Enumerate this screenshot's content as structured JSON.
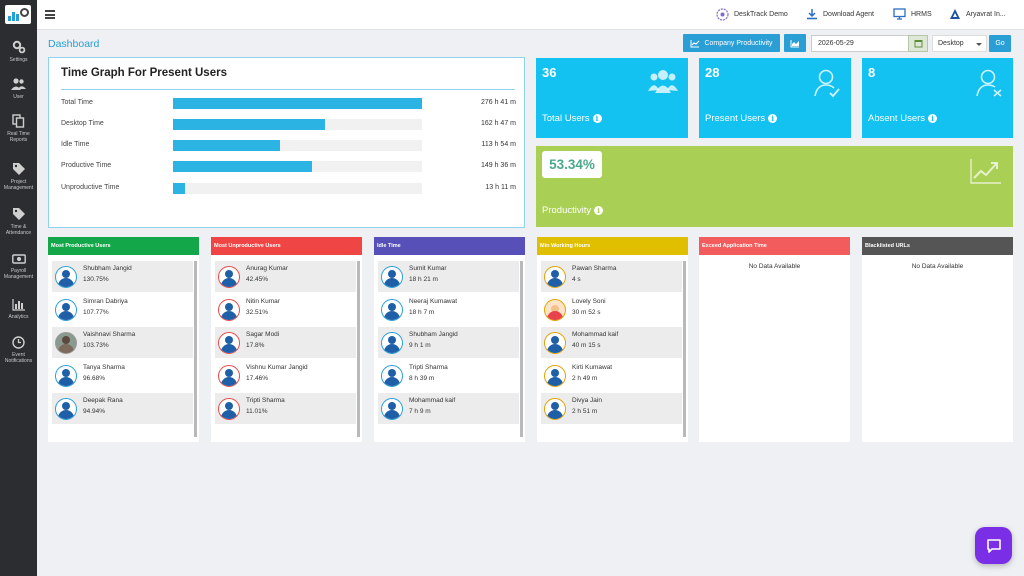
{
  "sidebar": {
    "items": [
      {
        "label": "Settings",
        "icon": "gears-icon"
      },
      {
        "label": "User",
        "icon": "users-icon"
      },
      {
        "label": "Real Time Reports",
        "icon": "copy-icon"
      },
      {
        "label": "Project Management",
        "icon": "tags-icon"
      },
      {
        "label": "Time & Attendance",
        "icon": "tag-icon"
      },
      {
        "label": "Payroll Management",
        "icon": "money-icon"
      },
      {
        "label": "Analytics",
        "icon": "bar-chart-icon"
      },
      {
        "label": "Event Notifications",
        "icon": "clock-icon"
      }
    ]
  },
  "topbar": {
    "desktrack": "DeskTrack Demo",
    "download": "Download Agent",
    "hrms": "HRMS",
    "user": "Aryavrat In..."
  },
  "page_title": "Dashboard",
  "controls": {
    "company_productivity": "Company Productivity",
    "date": "2026-05-29",
    "select_value": "Desktop",
    "go": "Go"
  },
  "time_graph": {
    "title": "Time Graph For Present Users",
    "rows": [
      {
        "label": "Total Time",
        "value": "276 h 41 m",
        "fraction": 1.0
      },
      {
        "label": "Desktop Time",
        "value": "162 h 47 m",
        "fraction": 0.61
      },
      {
        "label": "Idle Time",
        "value": "113 h 54 m",
        "fraction": 0.43
      },
      {
        "label": "Productive Time",
        "value": "149 h 36 m",
        "fraction": 0.56
      },
      {
        "label": "Unproductive Time",
        "value": "13 h 11 m",
        "fraction": 0.05
      }
    ]
  },
  "cards": {
    "total": {
      "value": "36",
      "label": "Total Users"
    },
    "present": {
      "value": "28",
      "label": "Present Users"
    },
    "absent": {
      "value": "8",
      "label": "Absent Users"
    },
    "productivity": {
      "value": "53.34%",
      "label": "Productivity"
    }
  },
  "panels": [
    {
      "title": "Most Productive Users",
      "color": "#14a74a",
      "avatar_border": "#2a9fd6",
      "rows": [
        {
          "name": "Shubham Jangid",
          "value": "130.75%"
        },
        {
          "name": "Simran Dabriya",
          "value": "107.77%"
        },
        {
          "name": "Vaishnavi Sharma",
          "value": "103.73%",
          "photo": true
        },
        {
          "name": "Tanya Sharma",
          "value": "96.68%"
        },
        {
          "name": "Deepak Rana",
          "value": "94.94%"
        }
      ]
    },
    {
      "title": "Most Unproductive Users",
      "color": "#f04545",
      "avatar_border": "#e84b4b",
      "rows": [
        {
          "name": "Anurag Kumar",
          "value": "42.45%"
        },
        {
          "name": "Nitin Kumar",
          "value": "32.51%"
        },
        {
          "name": "Sagar Modi",
          "value": "17.8%"
        },
        {
          "name": "Vishnu Kumar Jangid",
          "value": "17.46%"
        },
        {
          "name": "Tripti Sharma",
          "value": "11.01%"
        }
      ]
    },
    {
      "title": "Idle Time",
      "color": "#5650b8",
      "avatar_border": "#2a9fd6",
      "rows": [
        {
          "name": "Sumit Kumar",
          "value": "18 h 21 m"
        },
        {
          "name": "Neeraj Kumawat",
          "value": "18 h 7 m"
        },
        {
          "name": "Shubham Jangid",
          "value": "9 h 1 m"
        },
        {
          "name": "Tripti Sharma",
          "value": "8 h 39 m"
        },
        {
          "name": "Mohammad kaif",
          "value": "7 h 9 m"
        }
      ]
    },
    {
      "title": "Min Working Hours",
      "color": "#e0be00",
      "avatar_border": "#e0a300",
      "rows": [
        {
          "name": "Pawan Sharma",
          "value": "4 s"
        },
        {
          "name": "Lovely Soni",
          "value": "30 m 52 s",
          "cartoon": true
        },
        {
          "name": "Mohammad kaif",
          "value": "40 m 15 s"
        },
        {
          "name": "Kirti Kumawat",
          "value": "2 h 49 m"
        },
        {
          "name": "Divya Jain",
          "value": "2 h 51 m"
        }
      ]
    },
    {
      "title": "Exceed Application Time",
      "color": "#f25c5c",
      "nodata": "No Data Available"
    },
    {
      "title": "Blacklisted URLs",
      "color": "#555555",
      "nodata": "No Data Available"
    }
  ]
}
